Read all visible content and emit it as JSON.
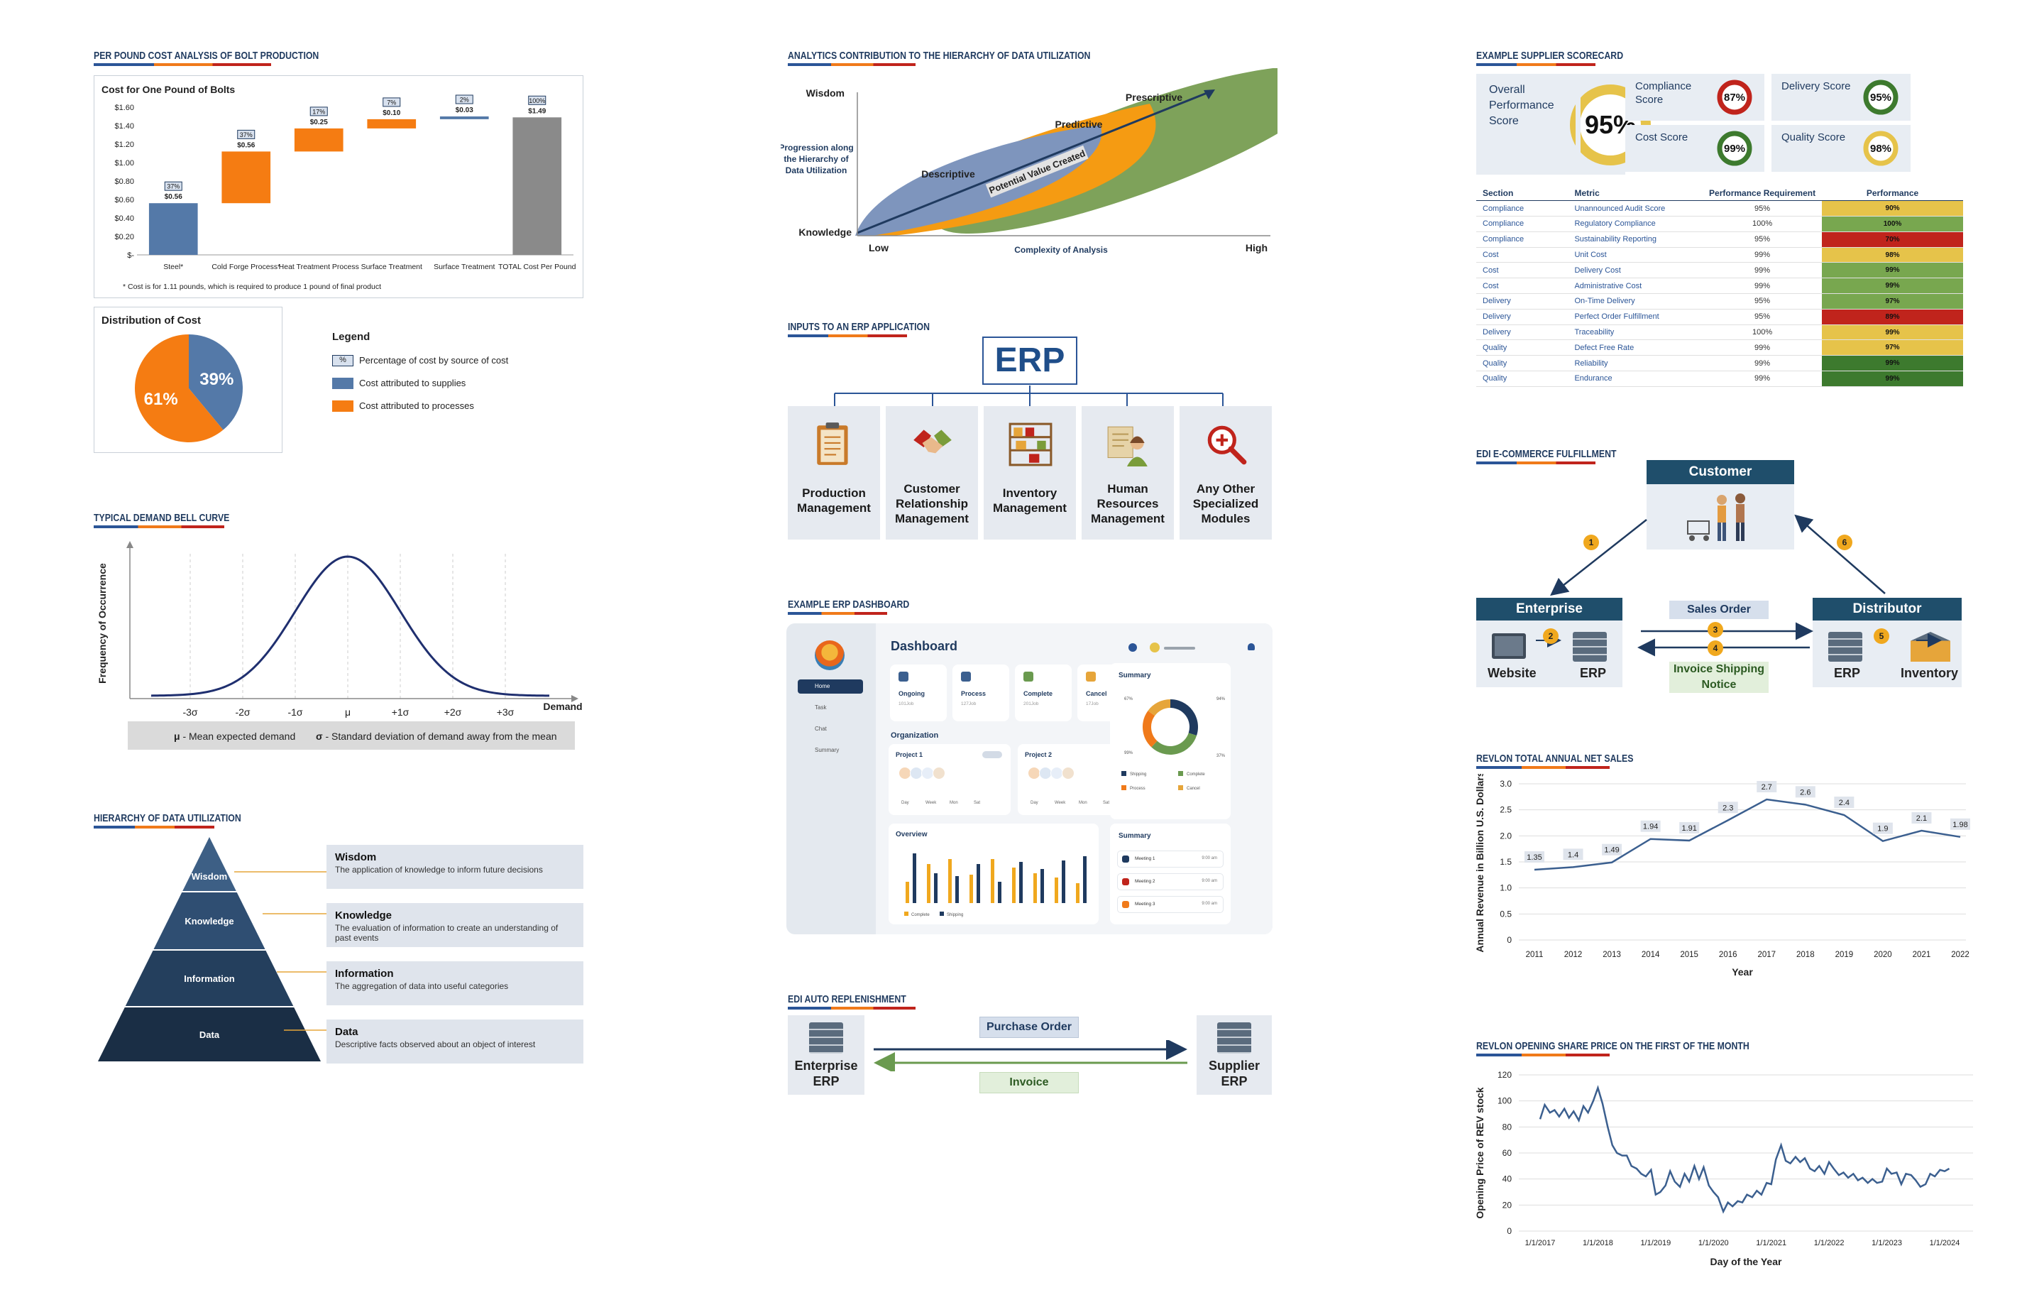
{
  "sections": {
    "bolt": "PER POUND COST ANALYSIS OF BOLT PRODUCTION",
    "bell": "TYPICAL DEMAND BELL CURVE",
    "hier": "HIERARCHY OF DATA UTILIZATION",
    "analytics": "ANALYTICS CONTRIBUTION TO THE HIERARCHY OF DATA UTILIZATION",
    "erp_inputs": "INPUTS TO AN ERP APPLICATION",
    "erp_dash": "EXAMPLE ERP DASHBOARD",
    "edi_auto": "EDI AUTO REPLENISHMENT",
    "scorecard": "EXAMPLE SUPPLIER SCORECARD",
    "edi_ecom": "EDI E-COMMERCE FULFILLMENT",
    "revlon_sales": "REVLON TOTAL ANNUAL NET SALES",
    "revlon_share": "REVLON OPENING SHARE PRICE ON THE FIRST OF THE MONTH"
  },
  "bolt_footnote": "* Cost is for 1.11 pounds, which is required to produce 1 pound of final product",
  "distribution": {
    "title": "Distribution of Cost",
    "legend_title": "Legend",
    "legend_pct_marker": "%",
    "legend_items": [
      "Percentage of cost by source of cost",
      "Cost attributed to supplies",
      "Cost attributed to processes"
    ]
  },
  "bell_stats": {
    "mu_symbol": "μ",
    "mu_text": "- Mean expected demand",
    "sigma_symbol": "σ",
    "sigma_text": "- Standard deviation of demand away from the mean"
  },
  "hierarchy": [
    {
      "level": "Wisdom",
      "title": "Wisdom",
      "desc": "The application of knowledge to inform future decisions"
    },
    {
      "level": "Knowledge",
      "title": "Knowledge",
      "desc": "The evaluation of information to create an understanding of past events"
    },
    {
      "level": "Information",
      "title": "Information",
      "desc": "The aggregation of data into useful categories"
    },
    {
      "level": "Data",
      "title": "Data",
      "desc": "Descriptive facts observed about an object of interest"
    }
  ],
  "analytics": {
    "y_top": "Wisdom",
    "y_bottom": "Knowledge",
    "x_left": "Low",
    "x_right": "High",
    "x_title": "Complexity of Analysis",
    "y_title": [
      "Progression along",
      "the Hierarchy of",
      "Data Utilization"
    ],
    "regions": [
      "Descriptive",
      "Predictive",
      "Prescriptive"
    ],
    "arrow_label": "Potential Value Created"
  },
  "erp": {
    "title": "ERP",
    "modules": [
      {
        "label": [
          "Production",
          "Management"
        ],
        "icon": "clipboard-icon"
      },
      {
        "label": [
          "Customer",
          "Relationship",
          "Management"
        ],
        "icon": "handshake-icon"
      },
      {
        "label": [
          "Inventory",
          "Management"
        ],
        "icon": "shelves-icon"
      },
      {
        "label": [
          "Human",
          "Resources",
          "Management"
        ],
        "icon": "person-icon"
      },
      {
        "label": [
          "Any Other",
          "Specialized",
          "Modules"
        ],
        "icon": "magnifier-plus-icon"
      }
    ]
  },
  "dashboard": {
    "title": "Dashboard",
    "nav": [
      "Home",
      "Task",
      "Chat",
      "Summary"
    ],
    "cards": [
      "Ongoing",
      "Process",
      "Complete",
      "Cancel"
    ],
    "card_sub": [
      "101Job",
      "127Job",
      "201Job",
      "17Job"
    ],
    "summary": "Summary",
    "summary2": "Summary",
    "donut_labels": [
      "67%",
      "94%",
      "99%",
      "37%"
    ],
    "donut_legend": [
      "Shipping",
      "Complete",
      "Process",
      "Cancel"
    ],
    "organization": "Organization",
    "projects": [
      "Project 1",
      "Project 2"
    ],
    "weekdays": [
      "Day",
      "Week",
      "Mon",
      "Sat"
    ],
    "overview": "Overview",
    "overview_legend": [
      "Complete",
      "Shipping"
    ],
    "meetings": [
      "Meeting 1",
      "Meeting 2",
      "Meeting 3"
    ],
    "meeting_times": [
      "9:00 am",
      "9:00 am",
      "9:00 am"
    ]
  },
  "edi_auto": {
    "left": [
      "Enterprise",
      "ERP"
    ],
    "right": [
      "Supplier",
      "ERP"
    ],
    "top": "Purchase Order",
    "bottom": "Invoice"
  },
  "scorecard": {
    "overall_label": "Overall Performance Score",
    "overall": "95%",
    "cards": [
      {
        "label": "Compliance Score",
        "value": "87%",
        "color": "#c0241c",
        "pct": 87
      },
      {
        "label": "Delivery Score",
        "value": "95%",
        "color": "#3d7a2e",
        "pct": 95
      },
      {
        "label": "Cost Score",
        "value": "99%",
        "color": "#3d7a2e",
        "pct": 99
      },
      {
        "label": "Quality Score",
        "value": "98%",
        "color": "#e6c34a",
        "pct": 98
      }
    ],
    "columns": [
      "Section",
      "Metric",
      "Performance Requirement",
      "Performance"
    ],
    "rows": [
      [
        "Compliance",
        "Unannounced Audit Score",
        "95%",
        "90%",
        "#e6c34a"
      ],
      [
        "Compliance",
        "Regulatory Compliance",
        "100%",
        "100%",
        "#78a74f"
      ],
      [
        "Compliance",
        "Sustainability Reporting",
        "95%",
        "70%",
        "#c0241c"
      ],
      [
        "Cost",
        "Unit Cost",
        "99%",
        "98%",
        "#e6c34a"
      ],
      [
        "Cost",
        "Delivery Cost",
        "99%",
        "99%",
        "#78a74f"
      ],
      [
        "Cost",
        "Administrative Cost",
        "99%",
        "99%",
        "#78a74f"
      ],
      [
        "Delivery",
        "On-Time Delivery",
        "95%",
        "97%",
        "#78a74f"
      ],
      [
        "Delivery",
        "Perfect Order Fulfillment",
        "95%",
        "89%",
        "#c0241c"
      ],
      [
        "Delivery",
        "Traceability",
        "100%",
        "99%",
        "#e6c34a"
      ],
      [
        "Quality",
        "Defect Free Rate",
        "99%",
        "97%",
        "#e6c34a"
      ],
      [
        "Quality",
        "Reliability",
        "99%",
        "99%",
        "#3d7a2e"
      ],
      [
        "Quality",
        "Endurance",
        "99%",
        "99%",
        "#3d7a2e"
      ]
    ]
  },
  "edi_ecom": {
    "customer": "Customer",
    "enterprise": "Enterprise",
    "distributor": "Distributor",
    "sales_order": "Sales Order",
    "invoice": [
      "Invoice Shipping",
      "Notice"
    ],
    "website": "Website",
    "erp1": "ERP",
    "erp2": "ERP",
    "inventory": "Inventory",
    "steps": [
      "1",
      "2",
      "3",
      "4",
      "5",
      "6"
    ]
  },
  "chart_data": [
    {
      "type": "bar",
      "subtype": "waterfall",
      "title": "Cost for One Pound of Bolts",
      "categories": [
        "Steel*",
        "Cold Forge Process*",
        "Heat Treatment Process",
        "Surface Treatment",
        "Surface Treatment",
        "TOTAL Cost Per Pound"
      ],
      "values": [
        0.56,
        0.56,
        0.25,
        0.1,
        0.03,
        1.49
      ],
      "bases": [
        0,
        0.56,
        1.12,
        1.37,
        1.47,
        0
      ],
      "value_labels": [
        "$0.56",
        "$0.56",
        "$0.25",
        "$0.10",
        "$0.03",
        "$1.49"
      ],
      "percent_labels": [
        "37%",
        "37%",
        "17%",
        "7%",
        "2%",
        "100%"
      ],
      "colors": [
        "#5479a8",
        "#f57c12",
        "#f57c12",
        "#f57c12",
        "#5479a8",
        "#8a8a8a"
      ],
      "ylim": [
        0,
        1.6
      ],
      "yticks": [
        "$-",
        "$0.20",
        "$0.40",
        "$0.60",
        "$0.80",
        "$1.00",
        "$1.20",
        "$1.40",
        "$1.60"
      ]
    },
    {
      "type": "pie",
      "title": "Distribution of Cost",
      "labels": [
        "Cost attributed to supplies",
        "Cost attributed to processes"
      ],
      "values": [
        39,
        61
      ],
      "value_labels": [
        "39%",
        "61%"
      ],
      "colors": [
        "#5479a8",
        "#f57c12"
      ]
    },
    {
      "type": "line",
      "title": "Typical Demand Bell Curve",
      "xlabel": "Demand",
      "ylabel": "Frequency of Occurrence",
      "xticks": [
        "-3σ",
        "-2σ",
        "-1σ",
        "μ",
        "+1σ",
        "+2σ",
        "+3σ"
      ],
      "distribution": "normal"
    },
    {
      "type": "line",
      "title": "",
      "xlabel": "Year",
      "ylabel": "Annual Revenue in Billion U.S. Dollars",
      "x": [
        "2011",
        "2012",
        "2013",
        "2014",
        "2015",
        "2016",
        "2017",
        "2018",
        "2019",
        "2020",
        "2021",
        "2022"
      ],
      "values": [
        1.35,
        1.4,
        1.49,
        1.94,
        1.91,
        2.3,
        2.7,
        2.6,
        2.4,
        1.9,
        2.1,
        1.98
      ],
      "ylim": [
        0,
        3.0
      ],
      "yticks": [
        "0",
        "0.5",
        "1.0",
        "1.5",
        "2.0",
        "2.5",
        "3.0"
      ],
      "color": "#3b5f8f"
    },
    {
      "type": "line",
      "title": "",
      "xlabel": "Day of the Year",
      "ylabel": "Opening Price of REV stock",
      "xticks": [
        "1/1/2017",
        "1/1/2018",
        "1/1/2019",
        "1/1/2020",
        "1/1/2021",
        "1/1/2022",
        "1/1/2023",
        "1/1/2024"
      ],
      "ylim": [
        0,
        120
      ],
      "yticks": [
        "0",
        "20",
        "40",
        "60",
        "80",
        "100",
        "120"
      ],
      "x_years": [
        2017.0,
        2017.08,
        2017.17,
        2017.25,
        2017.33,
        2017.42,
        2017.5,
        2017.58,
        2017.67,
        2017.75,
        2017.83,
        2017.92,
        2018.0,
        2018.08,
        2018.17,
        2018.25,
        2018.33,
        2018.42,
        2018.5,
        2018.58,
        2018.67,
        2018.75,
        2018.83,
        2018.92,
        2019.0,
        2019.08,
        2019.17,
        2019.25,
        2019.33,
        2019.42,
        2019.5,
        2019.58,
        2019.67,
        2019.75,
        2019.83,
        2019.92,
        2020.0,
        2020.08,
        2020.17,
        2020.25,
        2020.33,
        2020.42,
        2020.5,
        2020.58,
        2020.67,
        2020.75,
        2020.83,
        2020.92,
        2021.0,
        2021.08,
        2021.17,
        2021.25,
        2021.33,
        2021.42,
        2021.5,
        2021.58,
        2021.67,
        2021.75,
        2021.83,
        2021.92,
        2022.0,
        2022.08,
        2022.17,
        2022.25,
        2022.33,
        2022.42,
        2022.5,
        2022.58,
        2022.67,
        2022.75,
        2022.83,
        2022.92,
        2023.0,
        2023.08,
        2023.17,
        2023.25,
        2023.33,
        2023.42,
        2023.5,
        2023.58,
        2023.67,
        2023.75,
        2023.83,
        2023.92,
        2024.0,
        2024.08
      ],
      "values": [
        86,
        97,
        91,
        93,
        88,
        94,
        87,
        92,
        85,
        96,
        91,
        100,
        110,
        98,
        80,
        66,
        60,
        58,
        58,
        50,
        48,
        44,
        42,
        47,
        28,
        30,
        35,
        46,
        38,
        34,
        44,
        38,
        50,
        40,
        49,
        35,
        30,
        26,
        15,
        22,
        19,
        23,
        22,
        28,
        26,
        31,
        28,
        37,
        36,
        55,
        66,
        54,
        52,
        57,
        53,
        56,
        48,
        46,
        50,
        44,
        53,
        48,
        43,
        45,
        41,
        44,
        39,
        41,
        37,
        40,
        37,
        38,
        48,
        44,
        45,
        36,
        44,
        43,
        39,
        34,
        36,
        44,
        42,
        47,
        46,
        48
      ],
      "color": "#3b5f8f"
    }
  ]
}
